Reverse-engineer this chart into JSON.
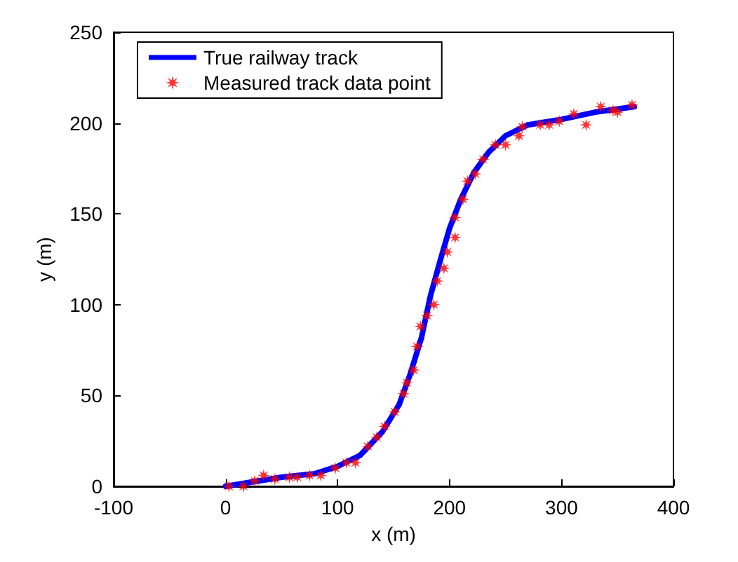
{
  "chart_data": {
    "type": "line",
    "xlabel": "x (m)",
    "ylabel": "y (m)",
    "xlim": [
      -100,
      400
    ],
    "xticks": [
      -100,
      0,
      100,
      200,
      300,
      400
    ],
    "ylim": [
      0,
      250
    ],
    "yticks": [
      0,
      50,
      100,
      150,
      200,
      250
    ],
    "grid": false,
    "legend": "top left",
    "series": [
      {
        "name": "True railway track",
        "type": "line",
        "color": "#0000ff",
        "marker": "none",
        "line_style": "solid",
        "x": [
          0,
          20,
          50,
          80,
          100,
          120,
          140,
          155,
          165,
          175,
          183,
          192,
          200,
          210,
          222,
          235,
          250,
          270,
          300,
          330,
          365
        ],
        "values": [
          0,
          2,
          5,
          7,
          11,
          17,
          30,
          45,
          62,
          82,
          105,
          125,
          142,
          158,
          173,
          184,
          193,
          199,
          202,
          206,
          209
        ]
      },
      {
        "name": "Measured track data point",
        "type": "scatter",
        "color": "#ff0000",
        "marker": "star",
        "x": [
          3,
          16,
          26,
          34,
          44,
          57,
          64,
          75,
          85,
          98,
          108,
          116,
          127,
          135,
          142,
          151,
          159,
          162,
          168,
          171,
          174,
          180,
          186,
          189,
          195,
          198,
          205,
          205,
          212,
          216,
          223,
          230,
          241,
          250,
          262,
          265,
          281,
          289,
          298,
          311,
          322,
          335,
          346,
          350,
          363
        ],
        "values": [
          0,
          0,
          3,
          6,
          4,
          5,
          5,
          6,
          6,
          10,
          13,
          13,
          22,
          27,
          33,
          41,
          51,
          57,
          64,
          77,
          88,
          94,
          100,
          113,
          120,
          129,
          137,
          148,
          158,
          168,
          172,
          180,
          188,
          188,
          193,
          198,
          199,
          199,
          201,
          205,
          199,
          209,
          207,
          206,
          210
        ]
      }
    ]
  }
}
